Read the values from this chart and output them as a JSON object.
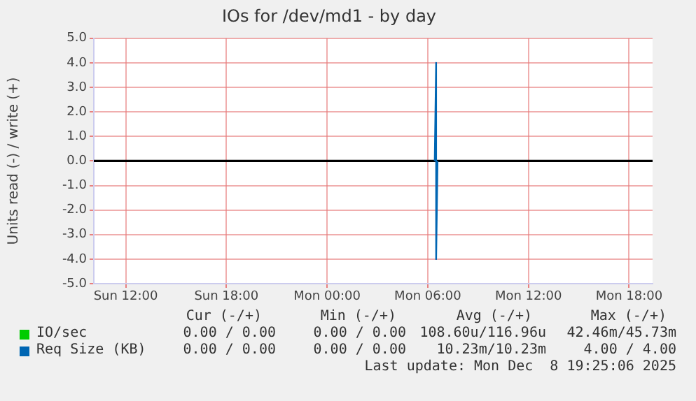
{
  "chart_data": {
    "type": "line",
    "title": "IOs for /dev/md1 - by day",
    "ylabel": "Units read (-) / write (+)",
    "xlim": [
      "2025-12-07T10:06",
      "2025-12-08T19:24"
    ],
    "xticks": [
      {
        "value": "2025-12-07T12:00",
        "label": "Sun 12:00"
      },
      {
        "value": "2025-12-07T18:00",
        "label": "Sun 18:00"
      },
      {
        "value": "2025-12-08T00:00",
        "label": "Mon 00:00"
      },
      {
        "value": "2025-12-08T06:00",
        "label": "Mon 06:00"
      },
      {
        "value": "2025-12-08T12:00",
        "label": "Mon 12:00"
      },
      {
        "value": "2025-12-08T18:00",
        "label": "Mon 18:00"
      }
    ],
    "ylim": [
      -5,
      5
    ],
    "yticks": [
      {
        "value": -5,
        "label": "-5.0"
      },
      {
        "value": -4,
        "label": "-4.0"
      },
      {
        "value": -3,
        "label": "-3.0"
      },
      {
        "value": -2,
        "label": "-2.0"
      },
      {
        "value": -1,
        "label": "-1.0"
      },
      {
        "value": 0,
        "label": "0.0"
      },
      {
        "value": 1,
        "label": "1.0"
      },
      {
        "value": 2,
        "label": "2.0"
      },
      {
        "value": 3,
        "label": "3.0"
      },
      {
        "value": 4,
        "label": "4.0"
      },
      {
        "value": 5,
        "label": "5.0"
      }
    ],
    "grid": true,
    "legend": "bottom",
    "marker": "none",
    "line_style": "solid",
    "ref_lines": [
      {
        "axis": "y",
        "value": 0,
        "color": "#000000"
      }
    ],
    "series": [
      {
        "name": "IO/sec",
        "color": "#00cc00"
      },
      {
        "name": "Req Size (KB)",
        "color": "#0066b3",
        "x": [
          "2025-12-08T06:25",
          "2025-12-08T06:30",
          "2025-12-08T06:30",
          "2025-12-08T06:35"
        ],
        "values": [
          0,
          4,
          -4,
          0
        ]
      }
    ],
    "annotations": [
      "Cur (-/+)",
      "Min (-/+)",
      "Avg (-/+)",
      "Max (-/+)",
      "0.00 / 0.00",
      "0.00 / 0.00",
      "108.60u/116.96u",
      "42.46m/45.73m",
      "0.00 / 0.00",
      "0.00 / 0.00",
      "10.23m/10.23m",
      "4.00 / 4.00",
      "Last update: Mon Dec  8 19:25:06 2025"
    ]
  }
}
